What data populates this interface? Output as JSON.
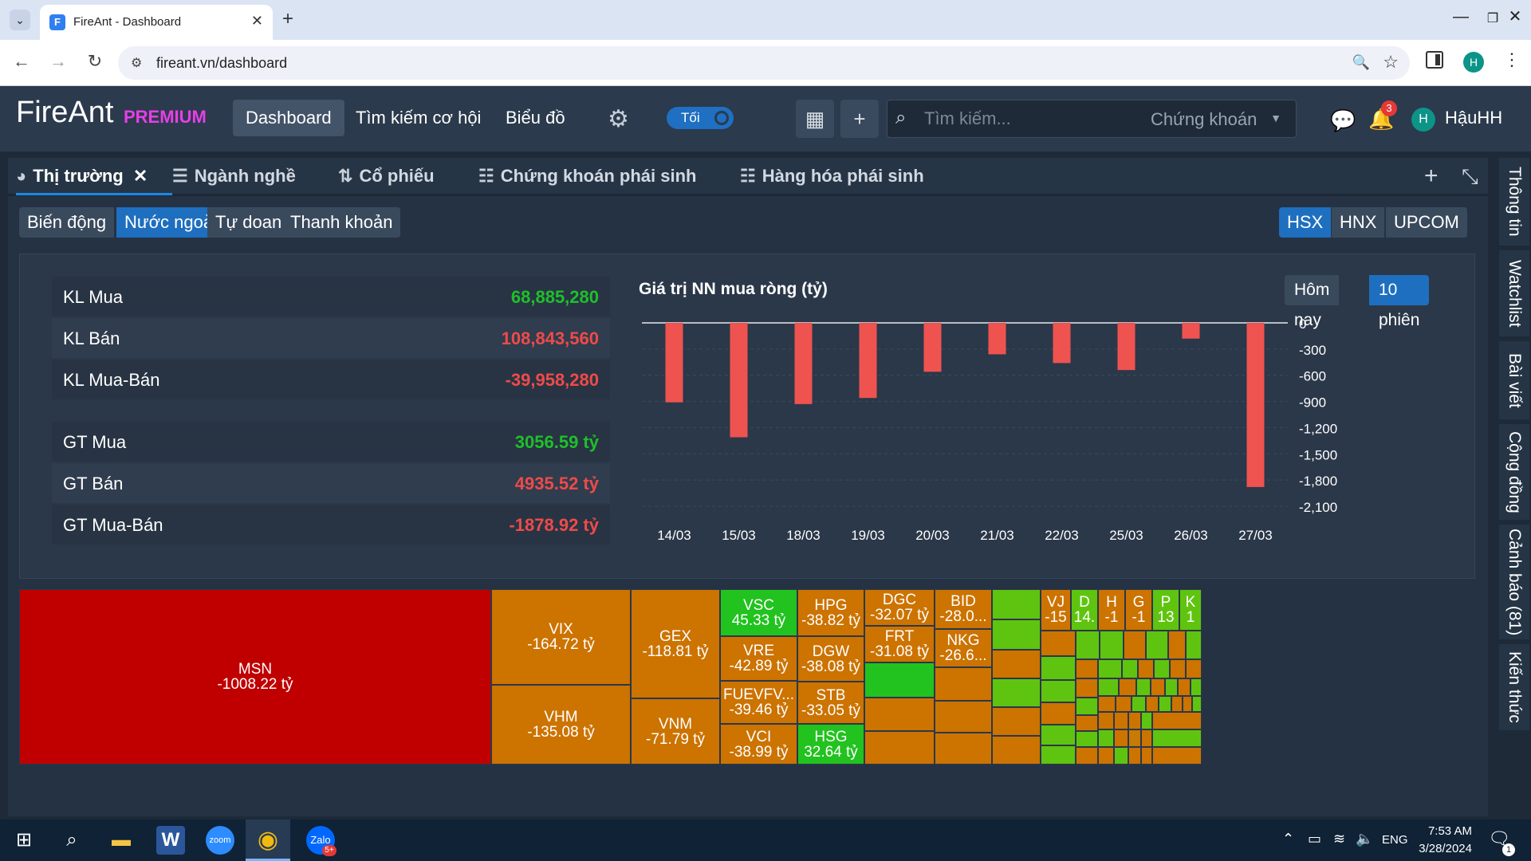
{
  "browser": {
    "tab_title": "FireAnt - Dashboard",
    "favicon": "F",
    "url": "fireant.vn/dashboard",
    "profile_initial": "H"
  },
  "app": {
    "logo": "FireAnt",
    "logo_badge": "PREMIUM",
    "nav": [
      "Dashboard",
      "Tìm kiếm cơ hội",
      "Biểu đồ"
    ],
    "theme_toggle": "Tối",
    "search_placeholder": "Tìm kiếm...",
    "search_scope": "Chứng khoán",
    "notification_count": "3",
    "user_initial": "H",
    "user_name": "HậuHH"
  },
  "main_tabs": [
    {
      "label": "Thị trường",
      "icon": "pie-chart-icon"
    },
    {
      "label": "Ngành nghề",
      "icon": "list-icon"
    },
    {
      "label": "Cổ phiếu",
      "icon": "sort-icon"
    },
    {
      "label": "Chứng khoán phái sinh",
      "icon": "ordered-list-icon"
    },
    {
      "label": "Hàng hóa phái sinh",
      "icon": "ordered-list-icon"
    }
  ],
  "sub_tabs": [
    "Biến động",
    "Nước ngoài",
    "Tự doanh",
    "Thanh khoản"
  ],
  "exchanges": [
    "HSX",
    "HNX",
    "UPCOM"
  ],
  "stats": [
    {
      "label": "KL Mua",
      "value": "68,885,280",
      "sign": "pos"
    },
    {
      "label": "KL Bán",
      "value": "108,843,560",
      "sign": "neg"
    },
    {
      "label": "KL Mua-Bán",
      "value": "-39,958,280",
      "sign": "neg"
    },
    {
      "label": "GT Mua",
      "value": "3056.59 tỷ",
      "sign": "pos"
    },
    {
      "label": "GT Bán",
      "value": "4935.52 tỷ",
      "sign": "neg"
    },
    {
      "label": "GT Mua-Bán",
      "value": "-1878.92 tỷ",
      "sign": "neg"
    }
  ],
  "range_buttons": [
    "Hôm nay",
    "10 phiên"
  ],
  "chart_data": {
    "type": "bar",
    "title": "Giá trị NN mua ròng (tỷ)",
    "categories": [
      "14/03",
      "15/03",
      "18/03",
      "19/03",
      "20/03",
      "21/03",
      "22/03",
      "25/03",
      "26/03",
      "27/03"
    ],
    "values": [
      -910,
      -1310,
      -930,
      -860,
      -560,
      -360,
      -460,
      -540,
      -180,
      -1880
    ],
    "yticks": [
      0,
      -300,
      -600,
      -900,
      -1200,
      -1500,
      -1800,
      -2100
    ],
    "ytick_labels": [
      "0",
      "-300",
      "-600",
      "-900",
      "-1,200",
      "-1,500",
      "-1,800",
      "-2,100"
    ],
    "ylim": [
      -2100,
      0
    ],
    "bar_color": "#ef5350"
  },
  "treemap": {
    "MSN": [
      "MSN",
      "-1008.22 tỷ"
    ],
    "VIX": [
      "VIX",
      "-164.72 tỷ"
    ],
    "VHM": [
      "VHM",
      "-135.08 tỷ"
    ],
    "GEX": [
      "GEX",
      "-118.81 tỷ"
    ],
    "VNM": [
      "VNM",
      "-71.79 tỷ"
    ],
    "VSC": [
      "VSC",
      "45.33 tỷ"
    ],
    "VRE": [
      "VRE",
      "-42.89 tỷ"
    ],
    "FUEVFV": [
      "FUEVFV...",
      "-39.46 tỷ"
    ],
    "VCI": [
      "VCI",
      "-38.99 tỷ"
    ],
    "HPG": [
      "HPG",
      "-38.82 tỷ"
    ],
    "DGW": [
      "DGW",
      "-38.08 tỷ"
    ],
    "STB": [
      "STB",
      "-33.05 tỷ"
    ],
    "HSG": [
      "HSG",
      "32.64 tỷ"
    ],
    "DGC": [
      "DGC",
      "-32.07 tỷ"
    ],
    "FRT": [
      "FRT",
      "-31.08 tỷ"
    ],
    "BID": [
      "BID",
      "-28.0..."
    ],
    "NKG": [
      "NKG",
      "-26.6..."
    ],
    "VJ": [
      "VJ",
      "-15"
    ],
    "D": [
      "D",
      "14."
    ],
    "H": [
      "H",
      "-1"
    ],
    "G": [
      "G",
      "-1"
    ],
    "P": [
      "P",
      "13"
    ],
    "K": [
      "K",
      "1"
    ]
  },
  "right_tabs": [
    "Thông tin",
    "Watchlist",
    "Bài viết",
    "Cộng đồng",
    "Cảnh báo (81)",
    "Kiến thức"
  ],
  "taskbar": {
    "language": "ENG",
    "time": "7:53 AM",
    "date": "3/28/2024",
    "chat_badge": "1",
    "zalo_badge": "5+"
  }
}
